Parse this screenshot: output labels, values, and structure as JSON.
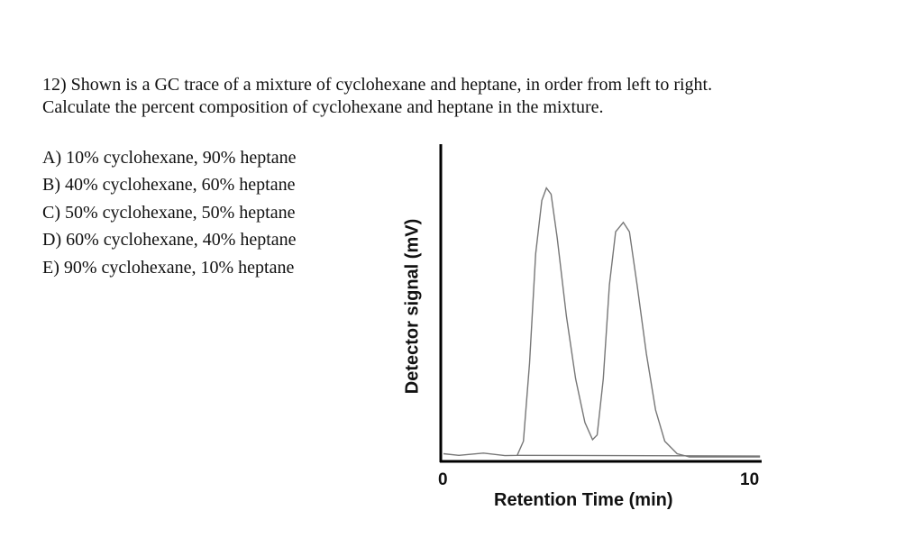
{
  "question": {
    "line1": "12) Shown is a GC trace of a mixture of cyclohexane and heptane, in order from left to right.",
    "line2": "Calculate the percent composition of cyclohexane and heptane in the mixture."
  },
  "options": [
    "A) 10% cyclohexane, 90% heptane",
    "B) 40% cyclohexane, 60% heptane",
    "C) 50% cyclohexane, 50% heptane",
    "D) 60% cyclohexane, 40% heptane",
    "E) 90% cyclohexane, 10% heptane"
  ],
  "chart_data": {
    "type": "line",
    "title": "",
    "xlabel": "Retention Time (min)",
    "ylabel": "Detector signal (mV)",
    "xlim": [
      0,
      10.3
    ],
    "ylim": [
      0,
      100
    ],
    "x_tick_labels": [
      "0",
      "10"
    ],
    "x_ticks": [
      0,
      10
    ],
    "grid": false,
    "line_color": "#777777",
    "series": [
      {
        "x": [
          0,
          0.5,
          1.3,
          2.0,
          2.4,
          2.6,
          2.8,
          3.0,
          3.2,
          3.35,
          3.5,
          3.7,
          4.0,
          4.3,
          4.6,
          4.85,
          5.0,
          5.2,
          5.4,
          5.6,
          5.85,
          6.05,
          6.3,
          6.6,
          6.9,
          7.2,
          7.6,
          8.0,
          10.3
        ],
        "y": [
          1,
          0.5,
          1.2,
          0.4,
          0.5,
          5,
          30,
          65,
          82,
          86,
          84,
          70,
          45,
          25,
          11,
          5.5,
          7,
          25,
          55,
          72,
          75,
          72,
          55,
          33,
          15,
          5,
          1,
          0,
          0
        ]
      }
    ],
    "baseline": {
      "x": [
        2.4,
        10.3
      ],
      "y": [
        0.5,
        0.3
      ]
    }
  }
}
